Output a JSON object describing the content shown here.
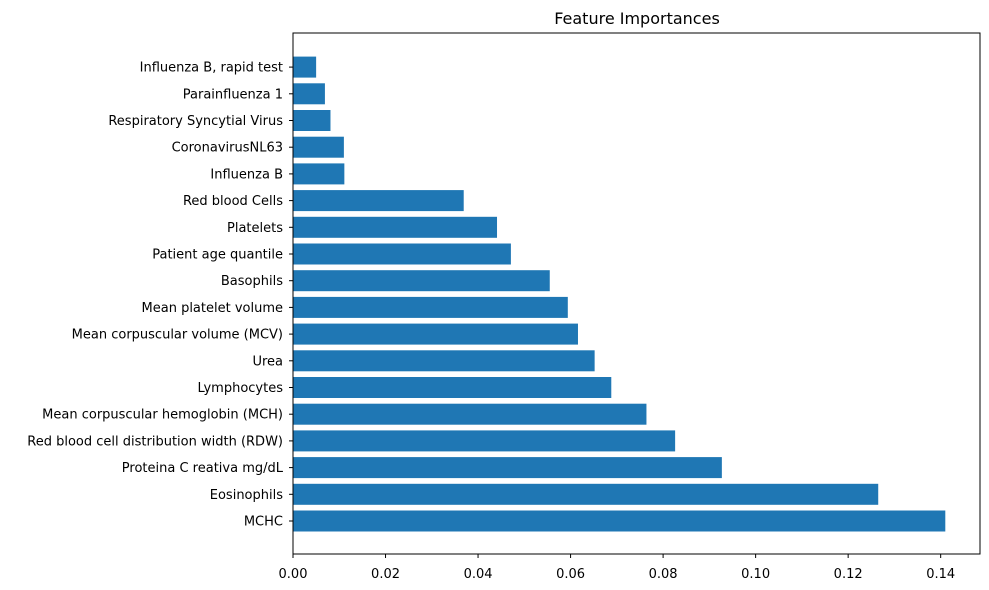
{
  "chart_data": {
    "type": "bar",
    "orientation": "horizontal",
    "title": "Feature Importances",
    "xlabel": "",
    "ylabel": "",
    "xlim": [
      0.0,
      0.1485
    ],
    "xticks": [
      0.0,
      0.02,
      0.04,
      0.06,
      0.08,
      0.1,
      0.12,
      0.14
    ],
    "xtick_labels": [
      "0.00",
      "0.02",
      "0.04",
      "0.06",
      "0.08",
      "0.10",
      "0.12",
      "0.14"
    ],
    "grid": false,
    "bar_color": "#1f77b4",
    "categories": [
      "MCHC",
      "Eosinophils",
      "Proteina C reativa mg/dL",
      "Red blood cell distribution width (RDW)",
      "Mean corpuscular hemoglobin (MCH)",
      "Lymphocytes",
      "Urea",
      "Mean corpuscular volume (MCV)",
      "Mean platelet volume ",
      "Basophils",
      "Patient age quantile",
      "Platelets",
      "Red blood Cells",
      "Influenza B",
      "CoronavirusNL63",
      "Respiratory Syncytial Virus",
      "Parainfluenza 1",
      "Influenza B, rapid test"
    ],
    "values": [
      0.141,
      0.1265,
      0.0927,
      0.0826,
      0.0764,
      0.0688,
      0.0652,
      0.0616,
      0.0594,
      0.0555,
      0.0471,
      0.0441,
      0.0369,
      0.0111,
      0.011,
      0.0081,
      0.0069,
      0.005
    ]
  }
}
